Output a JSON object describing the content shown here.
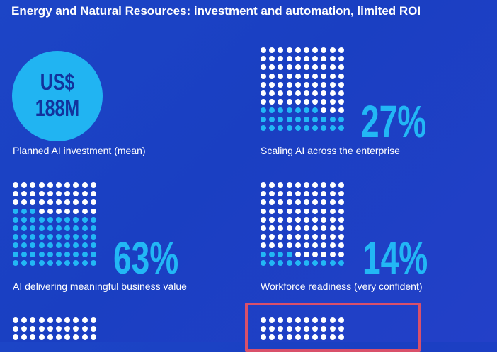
{
  "header": {
    "title": "Energy and Natural Resources: investment and automation, limited ROI"
  },
  "chart_data": {
    "type": "dot-matrix",
    "colors": {
      "filled": "#22b7f5",
      "unfilled": "#ffffff",
      "circle": "#21b4f2",
      "circle_text": "#12329d",
      "highlight_border": "#d9506a"
    },
    "investment": {
      "value_line1": "US$",
      "value_line2": "188M",
      "label": "Planned AI investment (mean)"
    },
    "stats": [
      {
        "id": "scaling",
        "value_text": "27%",
        "value": 27,
        "label": "Scaling AI across the enterprise"
      },
      {
        "id": "value",
        "value_text": "63%",
        "value": 63,
        "label": "AI delivering meaningful business value"
      },
      {
        "id": "workforce",
        "value_text": "14%",
        "value": 14,
        "label": "Workforce readiness (very confident)"
      }
    ]
  }
}
